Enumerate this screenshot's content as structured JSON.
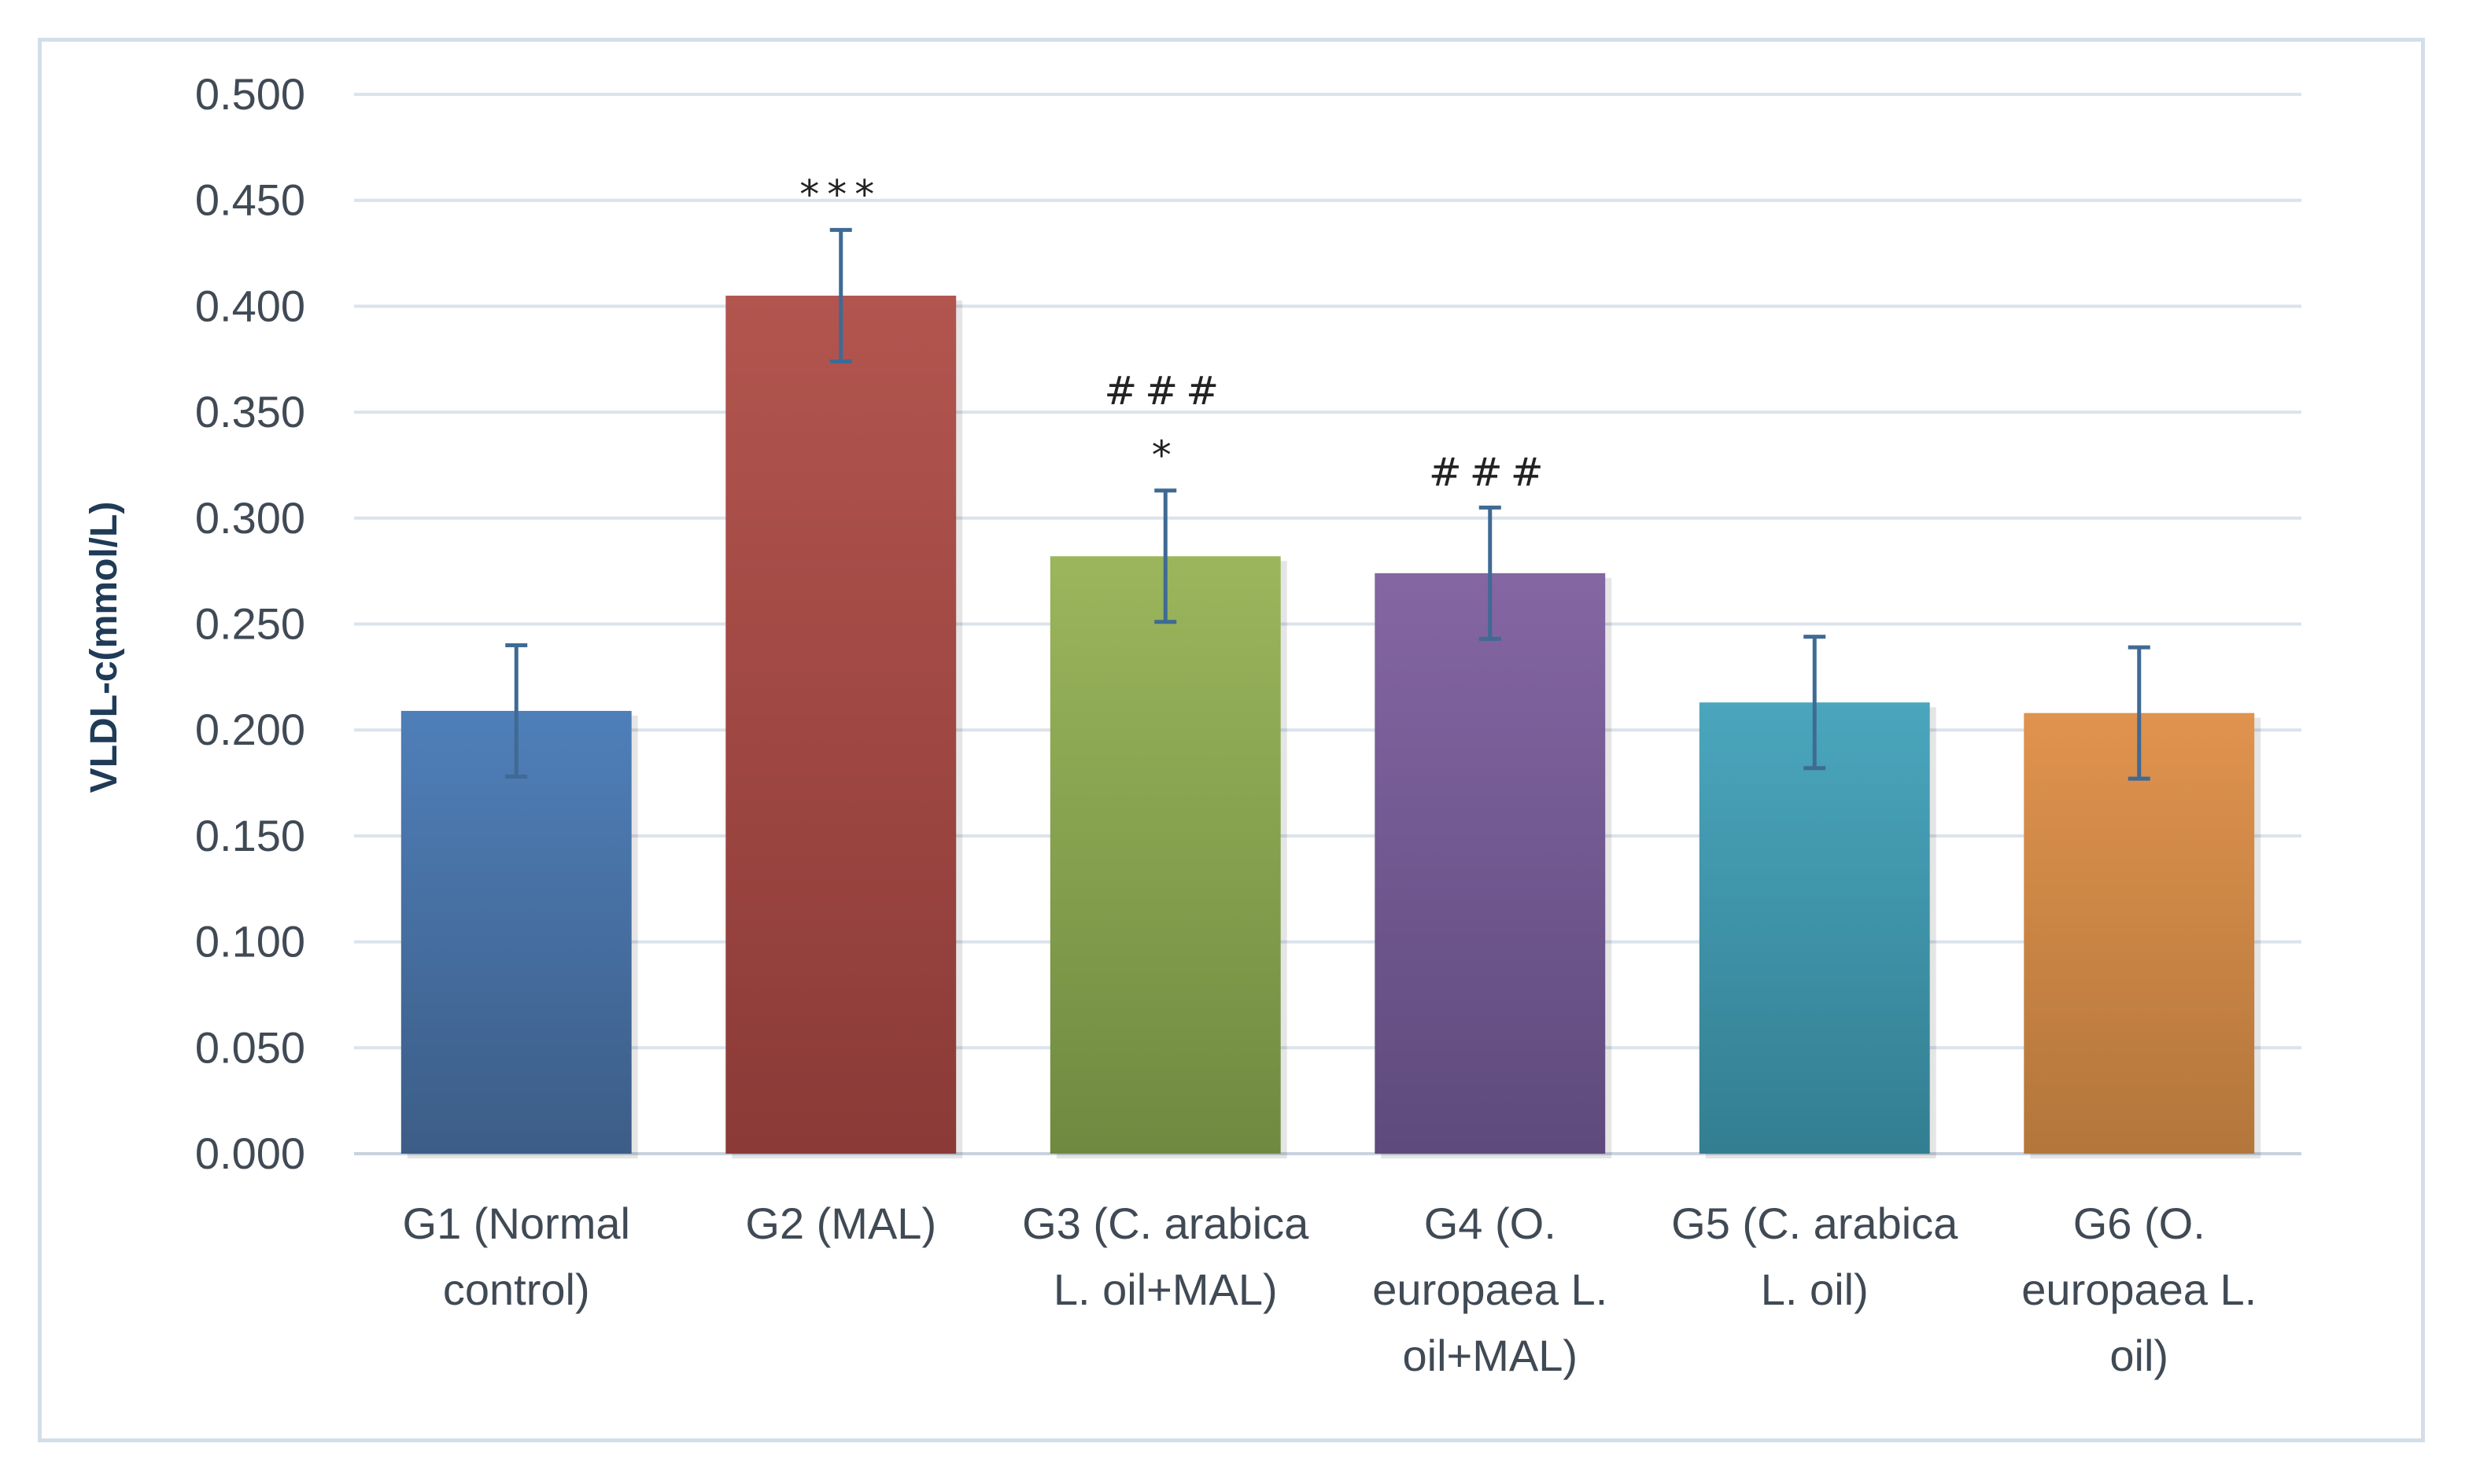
{
  "chart_data": {
    "type": "bar",
    "title": "",
    "xlabel": "",
    "ylabel": "VLDL-c(mmol/L)",
    "ylim": [
      0,
      0.5
    ],
    "yticks": [
      "0.000",
      "0.050",
      "0.100",
      "0.150",
      "0.200",
      "0.250",
      "0.300",
      "0.350",
      "0.400",
      "0.450",
      "0.500"
    ],
    "grid": true,
    "categories": [
      [
        "G1 (Normal",
        "control)"
      ],
      [
        "G2 (MAL)"
      ],
      [
        "G3 (C. arabica",
        "L. oil+MAL)"
      ],
      [
        "G4 (O.",
        "europaea L.",
        "oil+MAL)"
      ],
      [
        "G5 (C. arabica",
        "L. oil)"
      ],
      [
        "G6 (O.",
        "europaea L.",
        "oil)"
      ]
    ],
    "values": [
      0.209,
      0.405,
      0.282,
      0.274,
      0.213,
      0.208
    ],
    "errors": [
      0.031,
      0.031,
      0.031,
      0.031,
      0.031,
      0.031
    ],
    "annotations": [
      [],
      [
        "***"
      ],
      [
        "###",
        "*"
      ],
      [
        "###"
      ],
      [],
      []
    ],
    "colors": [
      [
        "#4f7fb9",
        "#3c5d87"
      ],
      [
        "#b3554f",
        "#8b3a37"
      ],
      [
        "#9bb65c",
        "#6f8a40"
      ],
      [
        "#8466a3",
        "#5e4a7c"
      ],
      [
        "#4aa6bd",
        "#337e91"
      ],
      [
        "#e0934e",
        "#b3763b"
      ]
    ],
    "error_bar_color": "#3f6a94",
    "grid_color": "#dbe3ec"
  }
}
